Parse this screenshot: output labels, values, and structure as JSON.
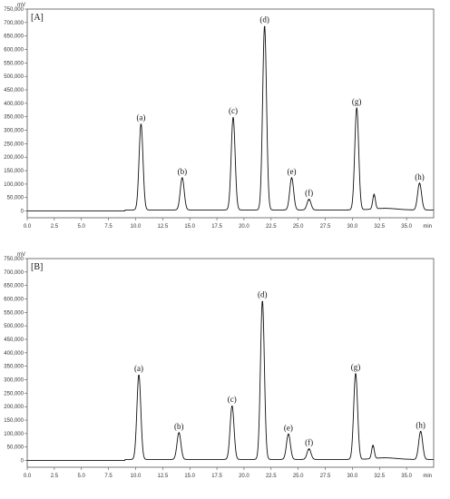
{
  "chart_data": [
    {
      "type": "line",
      "panel_label": "[A]",
      "y_unit": "mV",
      "x_unit": "min",
      "xlim": [
        0,
        37.5
      ],
      "ylim": [
        -25000,
        750000
      ],
      "y_ticks": [
        0,
        50000,
        100000,
        150000,
        200000,
        250000,
        300000,
        350000,
        400000,
        450000,
        500000,
        550000,
        600000,
        650000,
        700000,
        750000
      ],
      "y_tick_labels": [
        "0",
        "50,000",
        "100,000",
        "150,000",
        "200,000",
        "250,000",
        "300,000",
        "350,000",
        "400,000",
        "450,000",
        "500,000",
        "550,000",
        "600,000",
        "650,000",
        "700,000",
        "750,000"
      ],
      "x_ticks": [
        0,
        2.5,
        5,
        7.5,
        10,
        12.5,
        15,
        17.5,
        20,
        22.5,
        25,
        27.5,
        30,
        32.5,
        35
      ],
      "x_tick_labels": [
        "0.0",
        "2.5",
        "5.0",
        "7.5",
        "10.0",
        "12.5",
        "15.0",
        "17.5",
        "20.0",
        "22.5",
        "25.0",
        "27.5",
        "30.0",
        "32.5",
        "35.0"
      ],
      "grid": false,
      "peaks": [
        {
          "label": "(a)",
          "rt": 10.5,
          "height": 320000
        },
        {
          "label": "(b)",
          "rt": 14.3,
          "height": 120000
        },
        {
          "label": "(c)",
          "rt": 19.0,
          "height": 345000
        },
        {
          "label": "(d)",
          "rt": 21.9,
          "height": 685000
        },
        {
          "label": "(e)",
          "rt": 24.4,
          "height": 120000
        },
        {
          "label": "(f)",
          "rt": 26.0,
          "height": 40000
        },
        {
          "label": "(g)",
          "rt": 30.4,
          "height": 380000
        },
        {
          "label": "(h)",
          "rt": 36.2,
          "height": 100000
        }
      ],
      "unlabeled_peaks": [
        {
          "rt": 32.0,
          "height": 55000
        }
      ]
    },
    {
      "type": "line",
      "panel_label": "[B]",
      "y_unit": "mV",
      "x_unit": "min",
      "xlim": [
        0,
        37.5
      ],
      "ylim": [
        -25000,
        750000
      ],
      "y_ticks": [
        0,
        50000,
        100000,
        150000,
        200000,
        250000,
        300000,
        350000,
        400000,
        450000,
        500000,
        550000,
        600000,
        650000,
        700000,
        750000
      ],
      "y_tick_labels": [
        "0",
        "50,000",
        "100,000",
        "150,000",
        "200,000",
        "250,000",
        "300,000",
        "350,000",
        "400,000",
        "450,000",
        "500,000",
        "550,000",
        "600,000",
        "650,000",
        "700,000",
        "750,000"
      ],
      "x_ticks": [
        0,
        2.5,
        5,
        7.5,
        10,
        12.5,
        15,
        17.5,
        20,
        22.5,
        25,
        27.5,
        30,
        32.5,
        35
      ],
      "x_tick_labels": [
        "0.0",
        "2.5",
        "5.0",
        "7.5",
        "10.0",
        "12.5",
        "15.0",
        "17.5",
        "20.0",
        "22.5",
        "25.0",
        "27.5",
        "30.0",
        "32.5",
        "35.0"
      ],
      "grid": false,
      "peaks": [
        {
          "label": "(a)",
          "rt": 10.3,
          "height": 315000
        },
        {
          "label": "(b)",
          "rt": 14.0,
          "height": 100000
        },
        {
          "label": "(c)",
          "rt": 18.9,
          "height": 200000
        },
        {
          "label": "(d)",
          "rt": 21.7,
          "height": 590000
        },
        {
          "label": "(e)",
          "rt": 24.1,
          "height": 95000
        },
        {
          "label": "(f)",
          "rt": 26.0,
          "height": 40000
        },
        {
          "label": "(g)",
          "rt": 30.3,
          "height": 320000
        },
        {
          "label": "(h)",
          "rt": 36.3,
          "height": 105000
        }
      ],
      "unlabeled_peaks": [
        {
          "rt": 31.9,
          "height": 50000
        }
      ]
    }
  ]
}
